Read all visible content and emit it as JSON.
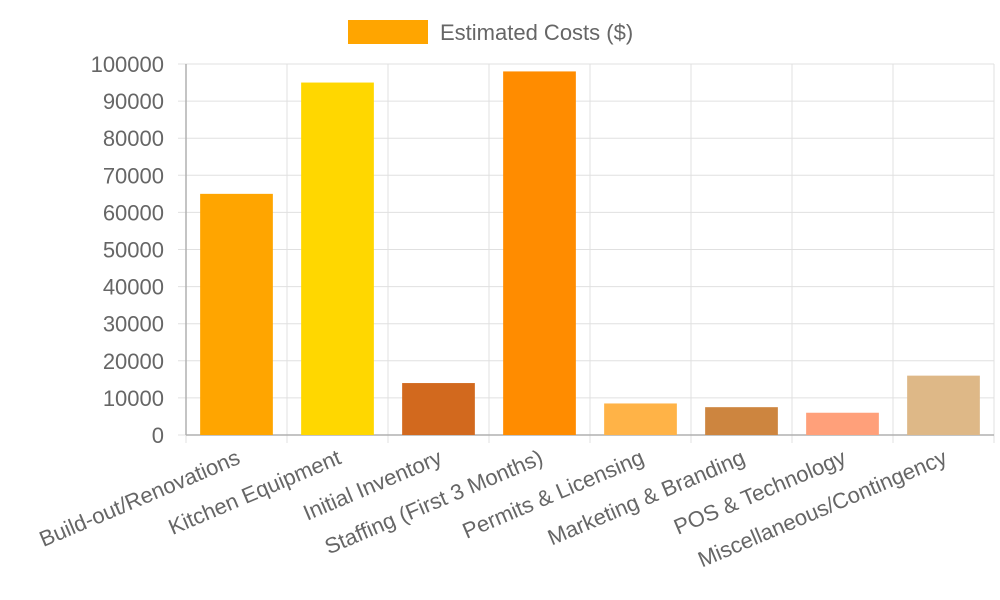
{
  "chart_data": {
    "type": "bar",
    "categories": [
      "Build-out/Renovations",
      "Kitchen Equipment",
      "Initial Inventory",
      "Staffing (First 3 Months)",
      "Permits & Licensing",
      "Marketing & Branding",
      "POS & Technology",
      "Miscellaneous/Contingency"
    ],
    "series": [
      {
        "name": "Estimated Costs ($)",
        "values": [
          65000,
          95000,
          14000,
          98000,
          8500,
          7500,
          6000,
          16000
        ],
        "colors": [
          "#FFA500",
          "#FFD700",
          "#D2691E",
          "#FF8C00",
          "#FFB347",
          "#CD853F",
          "#FFA07A",
          "#DEB887"
        ]
      }
    ],
    "y_ticks": [
      "100000",
      "90000",
      "80000",
      "70000",
      "60000",
      "50000",
      "40000",
      "30000",
      "20000",
      "10000",
      "0"
    ],
    "ylim": [
      0,
      100000
    ],
    "grid": true,
    "legend": {
      "position": "top",
      "label": "Estimated Costs ($)",
      "color": "#FFA500"
    }
  }
}
